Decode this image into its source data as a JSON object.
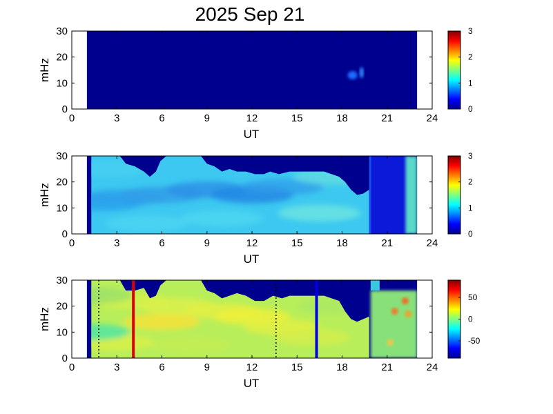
{
  "title": "2025 Sep 21",
  "colors": {
    "background_fill": "#00008f",
    "jet_low": "#00008f",
    "jet_high": "#800000"
  },
  "chart_data": [
    {
      "type": "heatmap",
      "xlabel": "UT",
      "ylabel": "mHz",
      "xlim": [
        0,
        24
      ],
      "ylim": [
        0,
        30
      ],
      "xticks": [
        "0",
        "3",
        "6",
        "9",
        "12",
        "15",
        "18",
        "21",
        "24"
      ],
      "yticks": [
        "0",
        "10",
        "20",
        "30"
      ],
      "data_xrange": [
        1,
        23
      ],
      "colorbar": {
        "range": [
          0,
          3
        ],
        "ticks": [
          "0",
          "1",
          "2",
          "3"
        ]
      },
      "features": [
        {
          "x": 18.7,
          "y": 13,
          "value": 0.8
        },
        {
          "x": 19.3,
          "y": 14,
          "value": 0.6
        }
      ]
    },
    {
      "type": "heatmap",
      "xlabel": "UT",
      "ylabel": "mHz",
      "xlim": [
        0,
        24
      ],
      "ylim": [
        0,
        30
      ],
      "xticks": [
        "0",
        "3",
        "6",
        "9",
        "12",
        "15",
        "18",
        "21",
        "24"
      ],
      "yticks": [
        "0",
        "10",
        "20",
        "30"
      ],
      "data_xrange": [
        1,
        23
      ],
      "colorbar": {
        "range": [
          0,
          3
        ],
        "ticks": [
          "0",
          "1",
          "2",
          "3"
        ]
      },
      "upper_boundary_mHz": [
        [
          1.3,
          30
        ],
        [
          1.8,
          30
        ],
        [
          2.5,
          30
        ],
        [
          3.2,
          30
        ],
        [
          3.6,
          27
        ],
        [
          4.2,
          26
        ],
        [
          4.8,
          24
        ],
        [
          5.2,
          22
        ],
        [
          5.6,
          24
        ],
        [
          5.9,
          28
        ],
        [
          6.3,
          30
        ],
        [
          7.2,
          30
        ],
        [
          8.0,
          30
        ],
        [
          8.6,
          30
        ],
        [
          9.0,
          27
        ],
        [
          9.5,
          26
        ],
        [
          10.0,
          24
        ],
        [
          10.5,
          25
        ],
        [
          11.0,
          24
        ],
        [
          11.6,
          24
        ],
        [
          12.2,
          23
        ],
        [
          12.8,
          23
        ],
        [
          13.2,
          24
        ],
        [
          13.8,
          23
        ],
        [
          14.5,
          24
        ],
        [
          15.3,
          24
        ],
        [
          16.0,
          24
        ],
        [
          16.8,
          24
        ],
        [
          17.3,
          23
        ],
        [
          17.8,
          22
        ],
        [
          18.2,
          20
        ],
        [
          18.6,
          17
        ],
        [
          19.0,
          15
        ],
        [
          19.4,
          15.5
        ],
        [
          19.8,
          17
        ]
      ],
      "low_band_x": [
        19.9,
        22.5
      ],
      "high_band_x": [
        22.5,
        23.0
      ],
      "colorbar_label_note": ""
    },
    {
      "type": "heatmap",
      "xlabel": "UT",
      "ylabel": "mHz",
      "xlim": [
        0,
        24
      ],
      "ylim": [
        0,
        30
      ],
      "xticks": [
        "0",
        "3",
        "6",
        "9",
        "12",
        "15",
        "18",
        "21",
        "24"
      ],
      "yticks": [
        "0",
        "10",
        "20",
        "30"
      ],
      "data_xrange": [
        1,
        23
      ],
      "colorbar": {
        "range": [
          -90,
          90
        ],
        "ticks": [
          "50",
          "0",
          "-50"
        ],
        "tick_values": [
          50,
          0,
          -50
        ]
      },
      "markers": [
        {
          "x": 1.8,
          "style": "dotted",
          "color": "#000000"
        },
        {
          "x": 4.1,
          "style": "solid",
          "color": "#e00000"
        },
        {
          "x": 13.6,
          "style": "dotted",
          "color": "#000000"
        },
        {
          "x": 16.3,
          "style": "solid",
          "color": "#0000e0"
        }
      ],
      "upper_boundary_mHz": [
        [
          1.3,
          30
        ],
        [
          2.0,
          30
        ],
        [
          2.6,
          30
        ],
        [
          3.2,
          30
        ],
        [
          3.6,
          26
        ],
        [
          4.2,
          26
        ],
        [
          4.8,
          27
        ],
        [
          5.2,
          23
        ],
        [
          5.6,
          24
        ],
        [
          5.9,
          28
        ],
        [
          6.3,
          30
        ],
        [
          8.0,
          30
        ],
        [
          8.6,
          30
        ],
        [
          9.0,
          26
        ],
        [
          9.5,
          25
        ],
        [
          10.0,
          23
        ],
        [
          10.5,
          24
        ],
        [
          11.0,
          25
        ],
        [
          11.6,
          24
        ],
        [
          12.2,
          22
        ],
        [
          12.8,
          22
        ],
        [
          13.4,
          24
        ],
        [
          14.0,
          23
        ],
        [
          14.5,
          24
        ],
        [
          15.3,
          24
        ],
        [
          16.0,
          24
        ],
        [
          16.8,
          24
        ],
        [
          17.3,
          23
        ],
        [
          17.8,
          22
        ],
        [
          18.2,
          18
        ],
        [
          18.6,
          15
        ],
        [
          19.0,
          14
        ],
        [
          19.4,
          15
        ],
        [
          19.8,
          16
        ]
      ]
    }
  ]
}
